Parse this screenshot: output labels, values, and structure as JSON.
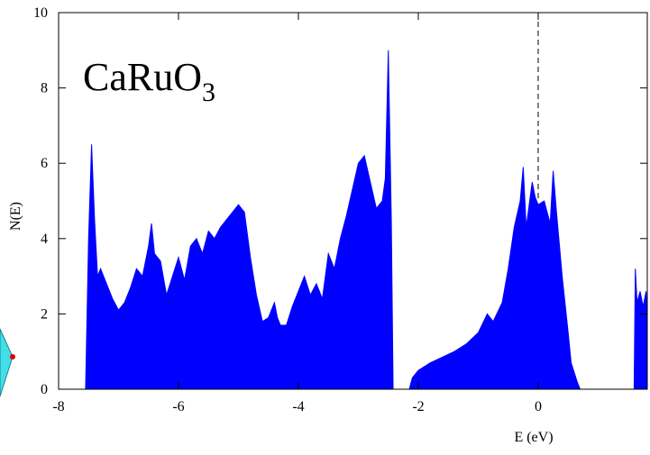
{
  "chart_data": {
    "type": "area",
    "title": "CaRuO",
    "title_subscript": "3",
    "x_label": "E (eV)",
    "y_label": "N(E)",
    "color": "#0000ff",
    "xlim": [
      -8,
      1.82
    ],
    "ylim": [
      0,
      10
    ],
    "xticks": [
      -8,
      -6,
      -4,
      -2,
      0
    ],
    "yticks": [
      0,
      2,
      4,
      6,
      8,
      10
    ],
    "fermi_level": 0,
    "x": [
      -7.55,
      -7.5,
      -7.45,
      -7.4,
      -7.35,
      -7.3,
      -7.2,
      -7.1,
      -7.0,
      -6.9,
      -6.8,
      -6.7,
      -6.6,
      -6.5,
      -6.45,
      -6.4,
      -6.3,
      -6.2,
      -6.1,
      -6.0,
      -5.9,
      -5.8,
      -5.7,
      -5.6,
      -5.5,
      -5.4,
      -5.3,
      -5.2,
      -5.1,
      -5.0,
      -4.9,
      -4.8,
      -4.7,
      -4.6,
      -4.5,
      -4.4,
      -4.35,
      -4.3,
      -4.2,
      -4.1,
      -4.0,
      -3.9,
      -3.8,
      -3.7,
      -3.6,
      -3.5,
      -3.4,
      -3.3,
      -3.2,
      -3.1,
      -3.0,
      -2.9,
      -2.8,
      -2.7,
      -2.6,
      -2.55,
      -2.5,
      -2.45,
      -2.42,
      -2.15,
      -2.1,
      -2.0,
      -1.8,
      -1.6,
      -1.4,
      -1.2,
      -1.0,
      -0.85,
      -0.75,
      -0.6,
      -0.5,
      -0.4,
      -0.3,
      -0.25,
      -0.2,
      -0.1,
      -0.05,
      0.0,
      0.1,
      0.2,
      0.25,
      0.3,
      0.4,
      0.5,
      0.55,
      0.65,
      0.7,
      1.6,
      1.62,
      1.65,
      1.7,
      1.75,
      1.8,
      1.82
    ],
    "values": [
      0,
      4.0,
      6.5,
      4.5,
      3.0,
      3.2,
      2.8,
      2.4,
      2.1,
      2.3,
      2.7,
      3.2,
      3.0,
      3.8,
      4.4,
      3.6,
      3.4,
      2.5,
      3.0,
      3.5,
      2.9,
      3.8,
      4.0,
      3.6,
      4.2,
      4.0,
      4.3,
      4.5,
      4.7,
      4.9,
      4.7,
      3.5,
      2.5,
      1.8,
      1.9,
      2.3,
      1.9,
      1.7,
      1.7,
      2.2,
      2.6,
      3.0,
      2.5,
      2.8,
      2.4,
      3.6,
      3.2,
      4.0,
      4.6,
      5.3,
      6.0,
      6.2,
      5.5,
      4.8,
      5.0,
      5.6,
      9.0,
      4.5,
      0,
      0,
      0.3,
      0.5,
      0.7,
      0.85,
      1.0,
      1.2,
      1.5,
      2.0,
      1.8,
      2.3,
      3.2,
      4.3,
      5.0,
      5.9,
      4.3,
      5.5,
      5.1,
      4.9,
      5.0,
      4.4,
      5.8,
      4.8,
      3.0,
      1.5,
      0.7,
      0.2,
      0,
      0,
      3.2,
      2.3,
      2.6,
      2.2,
      2.6,
      2.0
    ]
  }
}
